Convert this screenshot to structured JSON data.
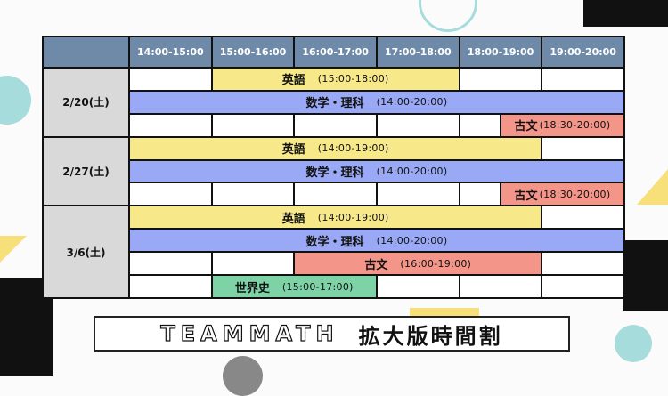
{
  "header": {
    "times": [
      "14:00-15:00",
      "15:00-16:00",
      "16:00-17:00",
      "17:00-18:00",
      "18:00-19:00",
      "19:00-20:00"
    ]
  },
  "colors": {
    "header": "#6e8aa8",
    "date": "#d9d9d9",
    "english": "#f7e98a",
    "math_science": "#9aa9f5",
    "classics": "#f4958a",
    "world_history": "#7ed3a6"
  },
  "days": [
    {
      "date": "2/20(土)",
      "rows": [
        [
          {
            "s": "14:00",
            "e": "15:00"
          },
          {
            "s": "15:00",
            "e": "18:00",
            "subject": "英語",
            "time": "(15:00-18:00)",
            "color": "english"
          },
          {
            "s": "18:00",
            "e": "19:00"
          },
          {
            "s": "19:00",
            "e": "20:00"
          }
        ],
        [
          {
            "s": "14:00",
            "e": "20:00",
            "subject": "数学・理科",
            "time": "(14:00-20:00)",
            "color": "math_science"
          }
        ],
        [
          {
            "s": "14:00",
            "e": "15:00"
          },
          {
            "s": "15:00",
            "e": "16:00"
          },
          {
            "s": "16:00",
            "e": "17:00"
          },
          {
            "s": "17:00",
            "e": "18:00"
          },
          {
            "s": "18:00",
            "e": "18:30"
          },
          {
            "s": "18:30",
            "e": "20:00",
            "subject": "古文",
            "time": "(18:30-20:00)",
            "color": "classics"
          }
        ]
      ]
    },
    {
      "date": "2/27(土)",
      "rows": [
        [
          {
            "s": "14:00",
            "e": "19:00",
            "subject": "英語",
            "time": "(14:00-19:00)",
            "color": "english"
          },
          {
            "s": "19:00",
            "e": "20:00"
          }
        ],
        [
          {
            "s": "14:00",
            "e": "20:00",
            "subject": "数学・理科",
            "time": "(14:00-20:00)",
            "color": "math_science"
          }
        ],
        [
          {
            "s": "14:00",
            "e": "15:00"
          },
          {
            "s": "15:00",
            "e": "16:00"
          },
          {
            "s": "16:00",
            "e": "17:00"
          },
          {
            "s": "17:00",
            "e": "18:00"
          },
          {
            "s": "18:00",
            "e": "18:30"
          },
          {
            "s": "18:30",
            "e": "20:00",
            "subject": "古文",
            "time": "(18:30-20:00)",
            "color": "classics"
          }
        ]
      ]
    },
    {
      "date": "3/6(土)",
      "rows": [
        [
          {
            "s": "14:00",
            "e": "19:00",
            "subject": "英語",
            "time": "(14:00-19:00)",
            "color": "english"
          },
          {
            "s": "19:00",
            "e": "20:00"
          }
        ],
        [
          {
            "s": "14:00",
            "e": "20:00",
            "subject": "数学・理科",
            "time": "(14:00-20:00)",
            "color": "math_science"
          }
        ],
        [
          {
            "s": "14:00",
            "e": "15:00"
          },
          {
            "s": "15:00",
            "e": "16:00"
          },
          {
            "s": "16:00",
            "e": "19:00",
            "subject": "古文",
            "time": "(16:00-19:00)",
            "color": "classics"
          },
          {
            "s": "19:00",
            "e": "20:00"
          }
        ],
        [
          {
            "s": "14:00",
            "e": "15:00"
          },
          {
            "s": "15:00",
            "e": "17:00",
            "subject": "世界史",
            "time": "(15:00-17:00)",
            "color": "world_history"
          },
          {
            "s": "17:00",
            "e": "18:00"
          },
          {
            "s": "18:00",
            "e": "19:00"
          },
          {
            "s": "19:00",
            "e": "20:00"
          }
        ]
      ]
    }
  ],
  "title": {
    "latin": "TEAMMATH",
    "japanese": "拡大版時間割"
  }
}
